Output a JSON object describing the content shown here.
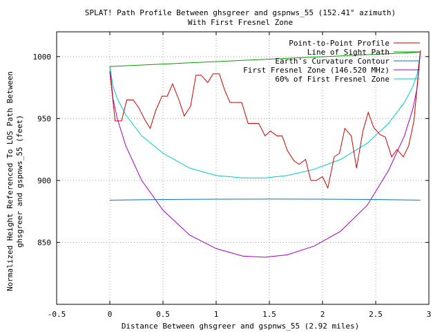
{
  "chart_data": {
    "type": "line",
    "title": "SPLAT! Path Profile Between ghsgreer and gspnws_55 (152.41° azimuth)",
    "subtitle": "With First Fresnel Zone",
    "xlabel": "Distance Between ghsgreer and gspnws_55 (2.92 miles)",
    "ylabel_lines": [
      "Normalized Height Referenced To LOS Path Between",
      "ghsgreer and gspnws_55 (feet)"
    ],
    "xlim": [
      -0.5,
      3
    ],
    "ylim": [
      800,
      1020
    ],
    "x_ticks": [
      -0.5,
      0,
      0.5,
      1,
      1.5,
      2,
      2.5,
      3
    ],
    "x_tick_labels": [
      "-0.5",
      "0",
      "0.5",
      "1",
      "1.5",
      "2",
      "2.5",
      "3"
    ],
    "y_ticks": [
      850,
      900,
      950,
      1000
    ],
    "y_tick_labels": [
      "850",
      "900",
      "950",
      "1000"
    ],
    "grid": true,
    "legend_position": "top-right",
    "series": [
      {
        "name": "Point-to-Point Profile",
        "color": "#cc0000",
        "x": [
          0,
          0.05,
          0.11,
          0.16,
          0.22,
          0.27,
          0.33,
          0.38,
          0.43,
          0.49,
          0.54,
          0.59,
          0.65,
          0.7,
          0.76,
          0.81,
          0.86,
          0.92,
          0.97,
          1.03,
          1.08,
          1.13,
          1.19,
          1.24,
          1.3,
          1.35,
          1.4,
          1.46,
          1.51,
          1.57,
          1.62,
          1.67,
          1.73,
          1.78,
          1.84,
          1.89,
          1.94,
          2.0,
          2.05,
          2.11,
          2.16,
          2.21,
          2.27,
          2.32,
          2.38,
          2.43,
          2.48,
          2.54,
          2.59,
          2.65,
          2.7,
          2.76,
          2.81,
          2.86,
          2.92
        ],
        "y": [
          988,
          948,
          948,
          965,
          965,
          959,
          949,
          942,
          956,
          968,
          968,
          978,
          965,
          952,
          960,
          985,
          985,
          979,
          986,
          986,
          973,
          963,
          963,
          963,
          946,
          946,
          946,
          936,
          940,
          936,
          936,
          924,
          916,
          913,
          917,
          900,
          900,
          903,
          894,
          919,
          922,
          942,
          936,
          910,
          940,
          955,
          943,
          937,
          935,
          919,
          925,
          919,
          928,
          948,
          1005
        ]
      },
      {
        "name": "Line of Sight Path",
        "color": "#00a000",
        "x": [
          0,
          2.92
        ],
        "y": [
          992,
          1003.5
        ]
      },
      {
        "name": "Earth's Curvature Contour",
        "color": "#0072c6",
        "x": [
          0,
          0.5,
          1.0,
          1.5,
          2.0,
          2.5,
          2.92
        ],
        "y": [
          884.1,
          884.6,
          884.9,
          885.0,
          884.9,
          884.6,
          884.1
        ]
      },
      {
        "name": "First Fresnel Zone (146.520 MHz)",
        "color": "#a000c8",
        "x": [
          0,
          0.03,
          0.07,
          0.15,
          0.3,
          0.5,
          0.75,
          1.0,
          1.25,
          1.46,
          1.67,
          1.92,
          2.17,
          2.42,
          2.62,
          2.77,
          2.85,
          2.89,
          2.92
        ],
        "y": [
          992,
          966,
          950,
          928,
          900,
          876,
          856,
          845,
          839,
          838,
          840,
          847,
          859,
          880,
          908,
          936,
          958,
          975,
          1003.5
        ]
      },
      {
        "name": "60% of First Fresnel Zone",
        "color": "#00c8c8",
        "x": [
          0,
          0.03,
          0.07,
          0.15,
          0.3,
          0.5,
          0.75,
          1.0,
          1.25,
          1.46,
          1.67,
          1.92,
          2.17,
          2.42,
          2.62,
          2.77,
          2.85,
          2.89,
          2.92
        ],
        "y": [
          992,
          976,
          966,
          953,
          936,
          922,
          910,
          904,
          902,
          902,
          904,
          909,
          917,
          930,
          946,
          963,
          976,
          986,
          1003.5
        ]
      }
    ]
  }
}
